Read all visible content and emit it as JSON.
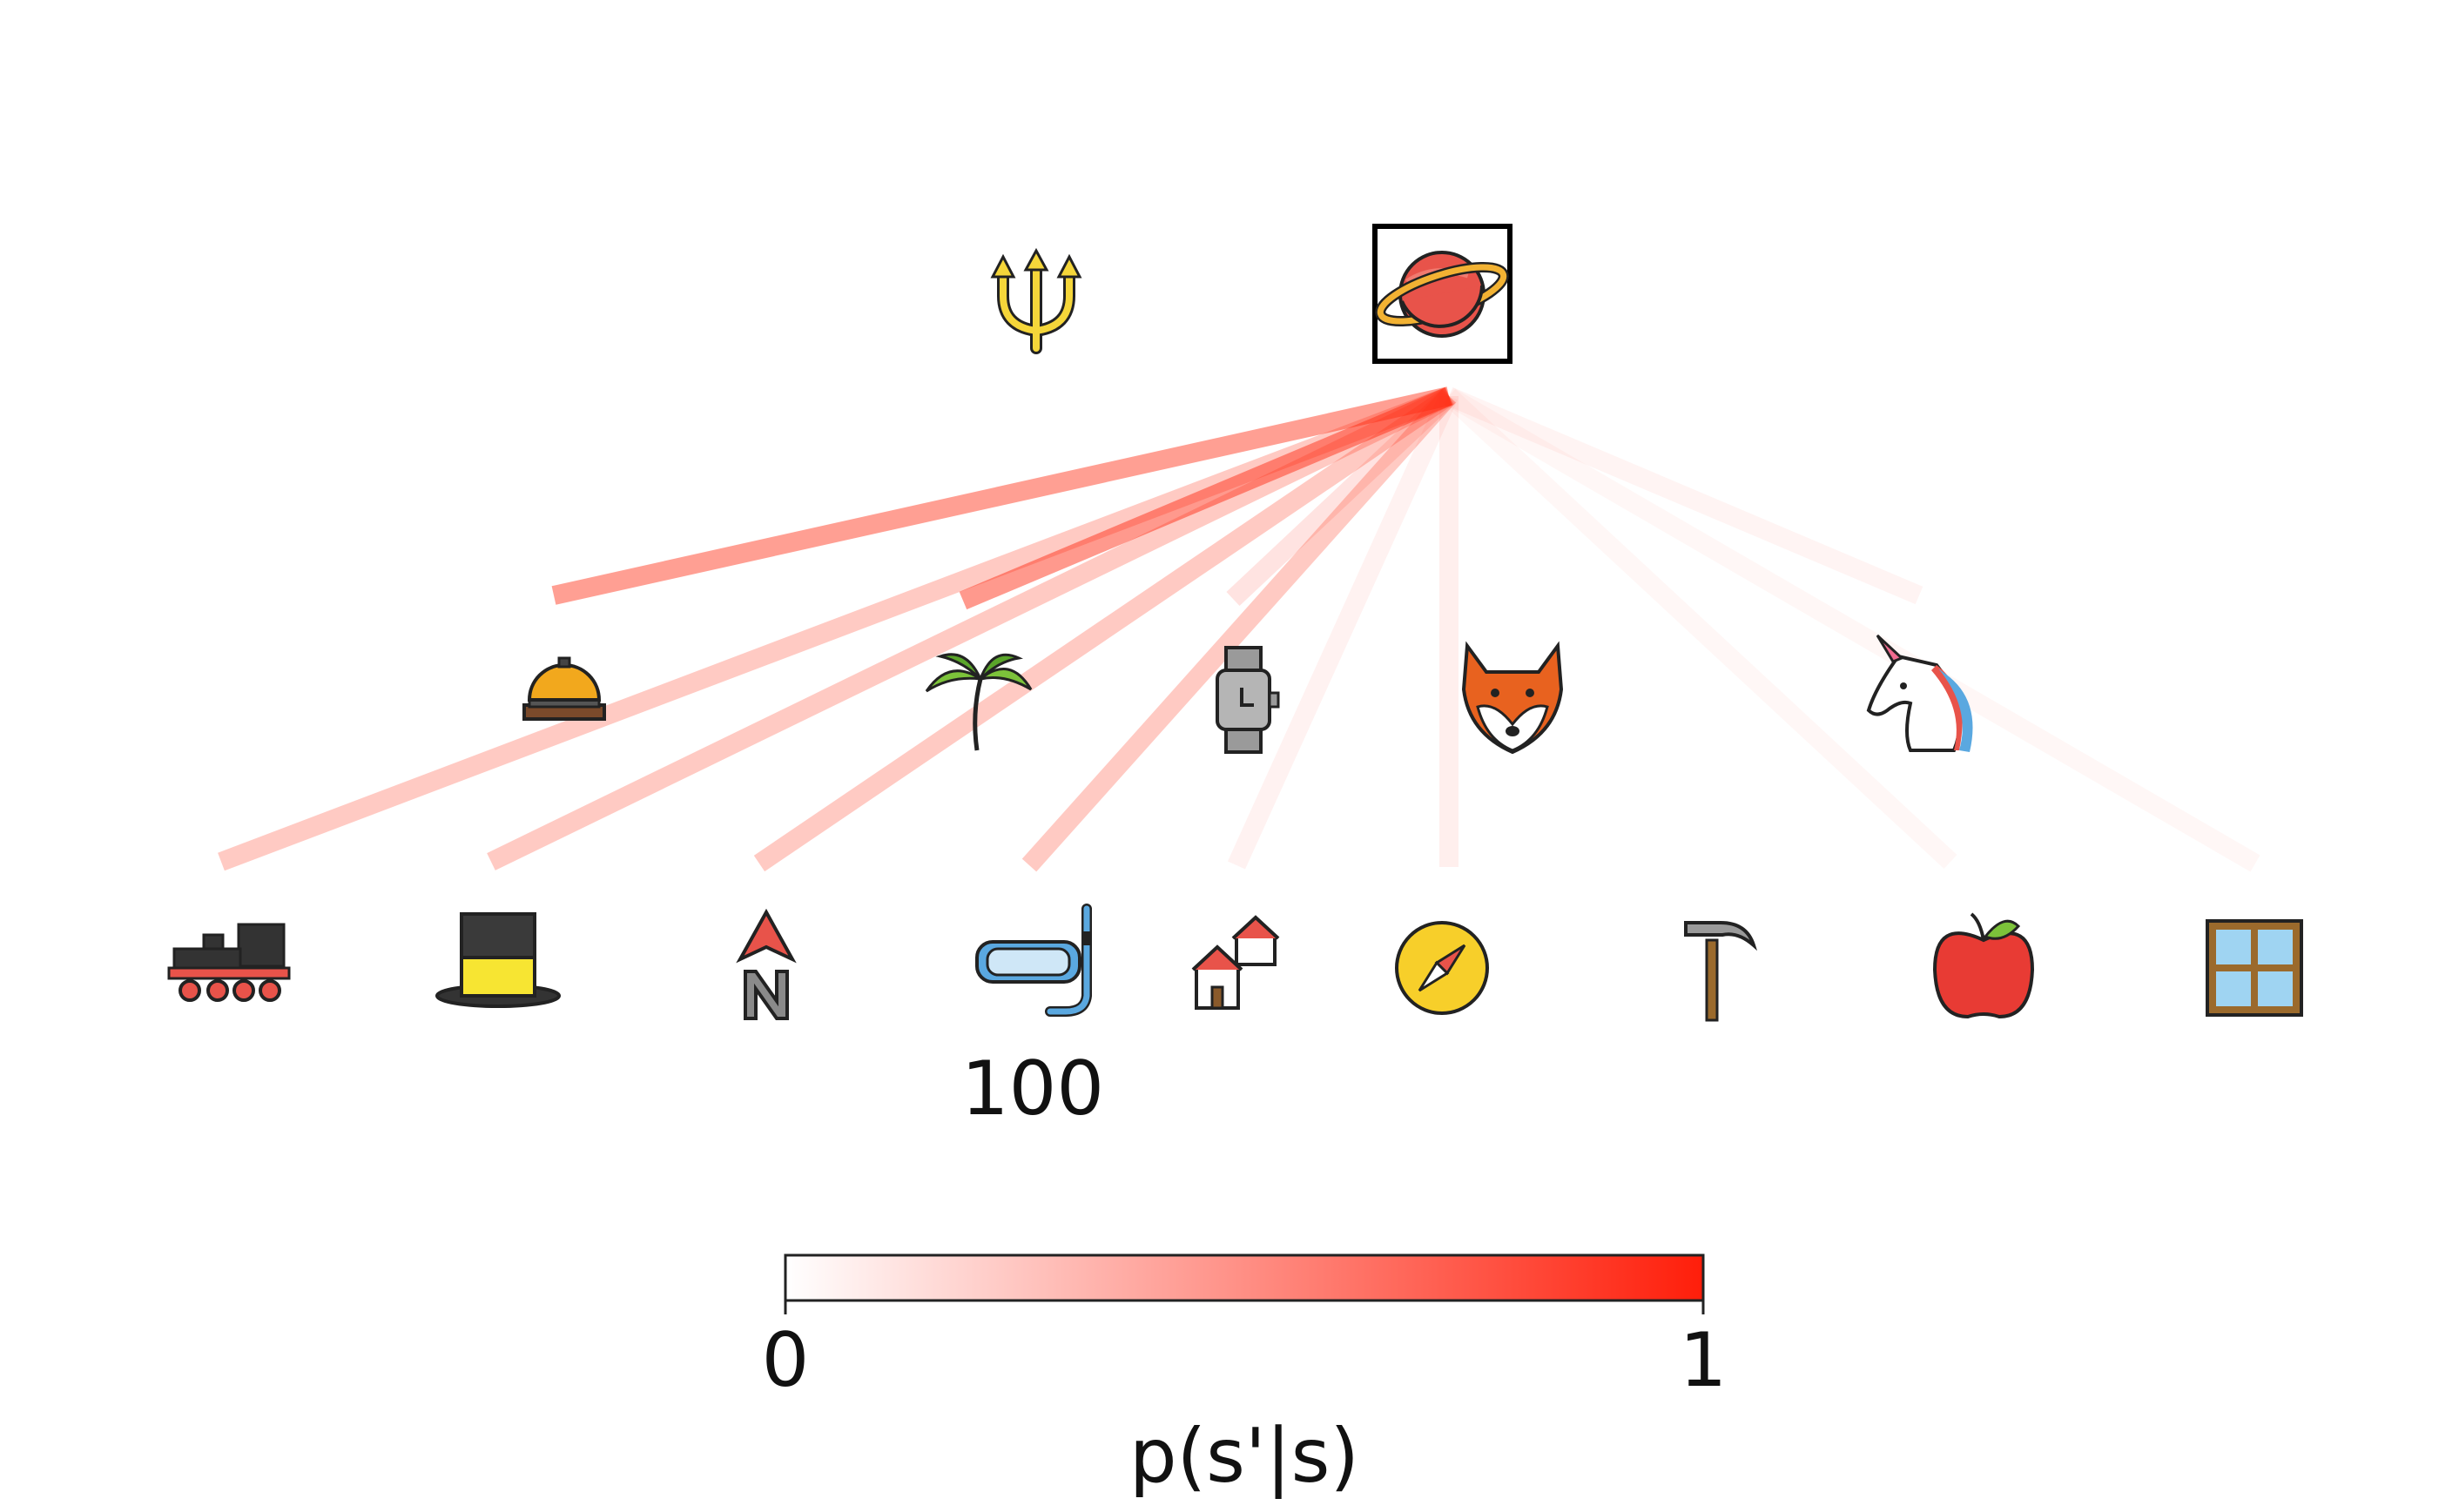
{
  "diagram": {
    "root": {
      "name": "ringed-planet",
      "icon": "ringed-planet-icon",
      "selected": true
    },
    "sibling": {
      "name": "trident",
      "icon": "trident-icon"
    },
    "level2": [
      {
        "name": "bellhop-bell",
        "icon": "bellhop-bell-icon"
      },
      {
        "name": "palm-tree",
        "icon": "palm-tree-icon"
      },
      {
        "name": "watch",
        "icon": "watch-icon"
      },
      {
        "name": "fox",
        "icon": "fox-icon"
      },
      {
        "name": "unicorn",
        "icon": "unicorn-icon"
      }
    ],
    "level3": [
      {
        "name": "locomotive",
        "icon": "locomotive-icon"
      },
      {
        "name": "top-hat",
        "icon": "top-hat-icon"
      },
      {
        "name": "north-arrow",
        "icon": "north-arrow-icon"
      },
      {
        "name": "snorkel-mask",
        "icon": "snorkel-mask-icon",
        "value_label": "100"
      },
      {
        "name": "houses",
        "icon": "houses-icon"
      },
      {
        "name": "compass",
        "icon": "compass-icon"
      },
      {
        "name": "hammer",
        "icon": "hammer-icon"
      },
      {
        "name": "apple",
        "icon": "apple-icon"
      },
      {
        "name": "window",
        "icon": "window-icon"
      }
    ],
    "transitions_to_level2": [
      0.45,
      0.48,
      0.08,
      0.05,
      0.05
    ],
    "transitions_to_level3": [
      0.25,
      0.25,
      0.25,
      0.25,
      0.06,
      0.04,
      0.03,
      0.03,
      0.03
    ],
    "edge_color": "#ff2a10"
  },
  "colorbar": {
    "min_label": "0",
    "max_label": "1",
    "label": "p(s'|s)",
    "color_low": "#ffffff",
    "color_high": "#ff1e0a"
  }
}
